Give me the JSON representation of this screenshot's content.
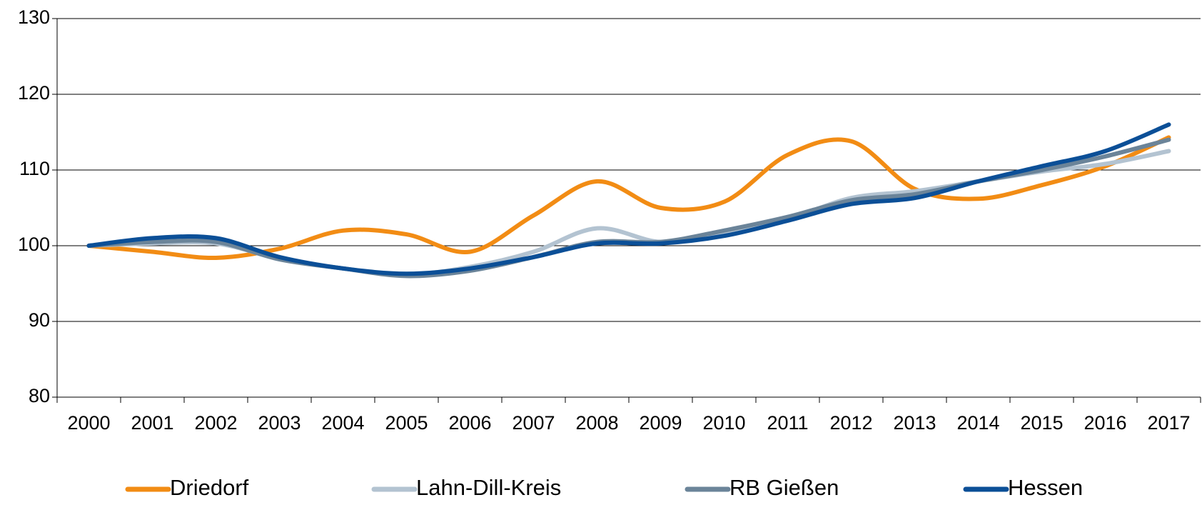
{
  "chart_data": {
    "type": "line",
    "categories": [
      "2000",
      "2001",
      "2002",
      "2003",
      "2004",
      "2005",
      "2006",
      "2007",
      "2008",
      "2009",
      "2010",
      "2011",
      "2012",
      "2013",
      "2014",
      "2015",
      "2016",
      "2017"
    ],
    "series": [
      {
        "name": "Driedorf",
        "color": "#f28c14",
        "values": [
          100,
          99.2,
          98.4,
          99.6,
          102,
          101.5,
          99.2,
          104,
          108.5,
          105,
          105.8,
          112,
          113.8,
          107.5,
          106.2,
          108,
          110.5,
          114.3
        ]
      },
      {
        "name": "Lahn-Dill-Kreis",
        "color": "#b3c3d1",
        "values": [
          100,
          100.3,
          100.3,
          98.3,
          97,
          96.2,
          97.2,
          99.2,
          102.3,
          100.5,
          101.5,
          103.5,
          106.3,
          107.2,
          108.5,
          109.8,
          110.8,
          112.5
        ]
      },
      {
        "name": "RB Gießen",
        "color": "#6b8499",
        "values": [
          100,
          100.5,
          100.5,
          98.2,
          97,
          96,
          96.7,
          98.5,
          100.5,
          100.5,
          102,
          103.8,
          106,
          106.8,
          108.5,
          110,
          111.8,
          114
        ]
      },
      {
        "name": "Hessen",
        "color": "#0b4f97",
        "values": [
          100,
          101,
          101,
          98.5,
          97,
          96.3,
          97,
          98.5,
          100.3,
          100.3,
          101.3,
          103.3,
          105.5,
          106.3,
          108.5,
          110.5,
          112.5,
          116
        ]
      }
    ],
    "ylim": [
      80,
      130
    ],
    "yticks": [
      80,
      90,
      100,
      110,
      120,
      130
    ],
    "grid": true
  }
}
